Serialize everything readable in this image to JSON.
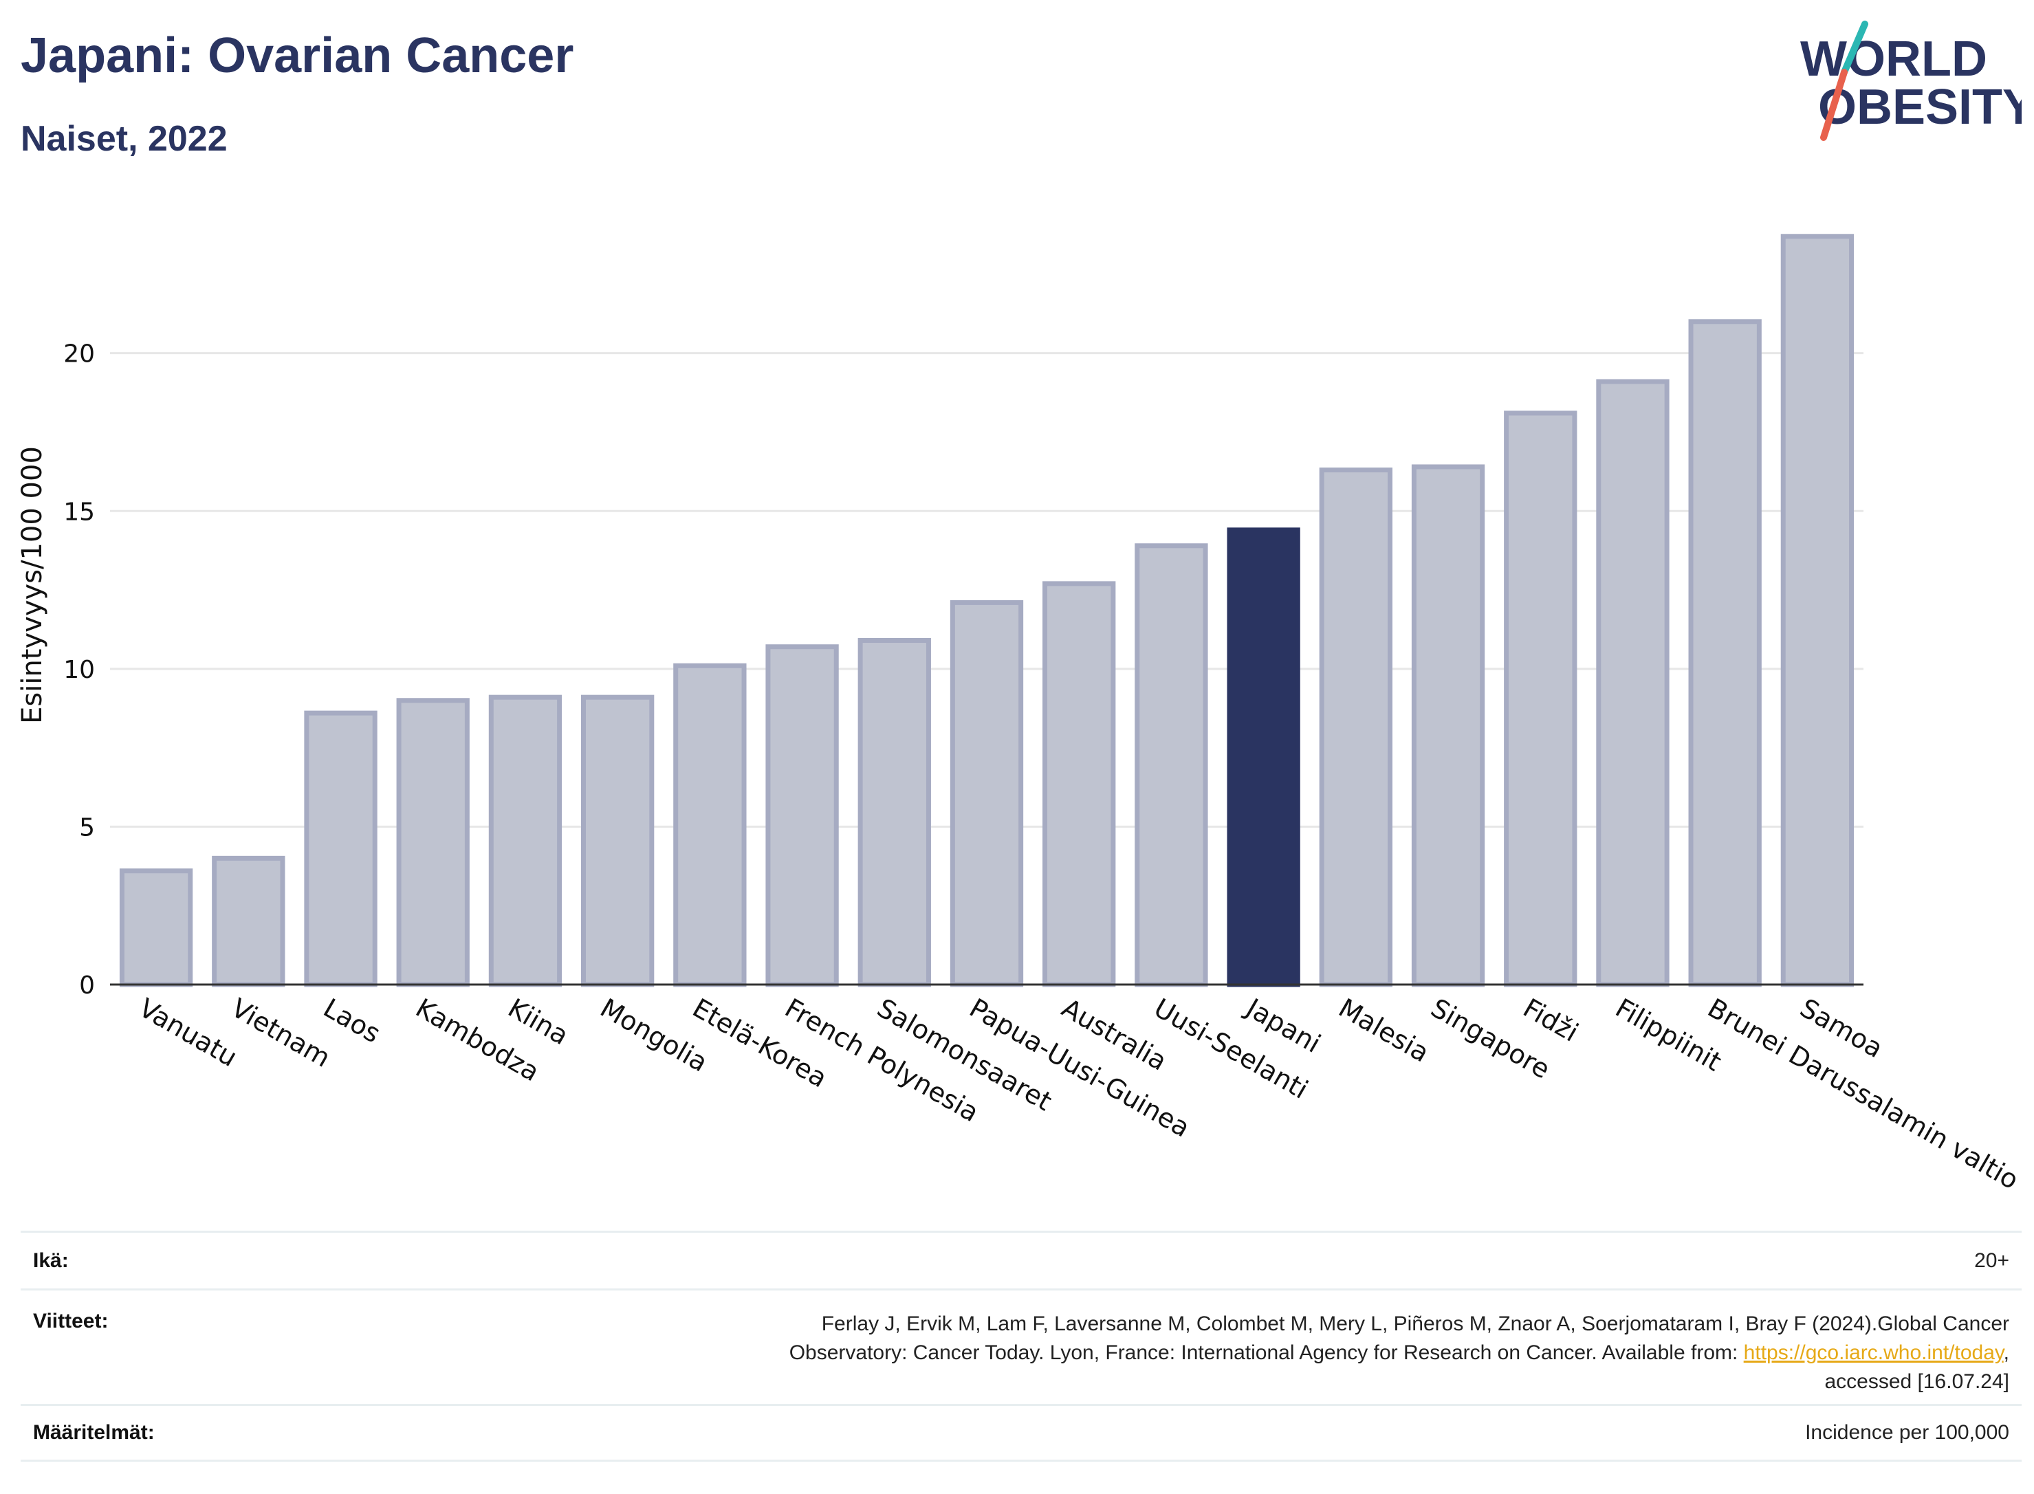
{
  "header": {
    "title": "Japani: Ovarian Cancer",
    "subtitle": "Naiset, 2022"
  },
  "logo": {
    "line1": "WORLD",
    "line2": "OBESITY",
    "colors": {
      "text": "#2a3461",
      "slash_teal": "#2bb7b3",
      "slash_red": "#e8614d"
    }
  },
  "chart_data": {
    "type": "bar",
    "ylabel": "Esiintyvyys/100 000",
    "xlabel": "",
    "ylim": [
      0,
      24
    ],
    "yticks": [
      0,
      5,
      10,
      15,
      20
    ],
    "grid": true,
    "highlight": "Japani",
    "colors": {
      "bar": "#2a3461",
      "bar_muted": "#bfc3d0",
      "bar_muted_border": "#a6abc2",
      "grid": "#e7e7e7"
    },
    "categories": [
      "Vanuatu",
      "Vietnam",
      "Laos",
      "Kambodza",
      "Kiina",
      "Mongolia",
      "Etelä-Korea",
      "French Polynesia",
      "Salomonsaaret",
      "Papua-Uusi-Guinea",
      "Australia",
      "Uusi-Seelanti",
      "Japani",
      "Malesia",
      "Singapore",
      "Fidži",
      "Filippiinit",
      "Brunei Darussalamin valtio",
      "Samoa"
    ],
    "values": [
      3.6,
      4.0,
      8.6,
      9.0,
      9.1,
      9.1,
      10.1,
      10.7,
      10.9,
      12.1,
      12.7,
      13.9,
      14.4,
      16.3,
      16.4,
      18.1,
      19.1,
      21.0,
      23.7
    ]
  },
  "footer": {
    "age_label": "Ikä:",
    "age_value": "20+",
    "refs_label": "Viitteet:",
    "refs_line1": "Ferlay J, Ervik M, Lam F, Laversanne M, Colombet M, Mery L, Piñeros M, Znaor A, Soerjomataram I, Bray F (2024).Global Cancer",
    "refs_line2_pre": "Observatory: Cancer Today. Lyon, France: International Agency for Research on Cancer. Available from: ",
    "refs_link": "https://gco.iarc.who.int/today",
    "refs_line2_post": ",",
    "refs_line3": "accessed [16.07.24]",
    "defs_label": "Määritelmät:",
    "defs_value": "Incidence per 100,000"
  }
}
